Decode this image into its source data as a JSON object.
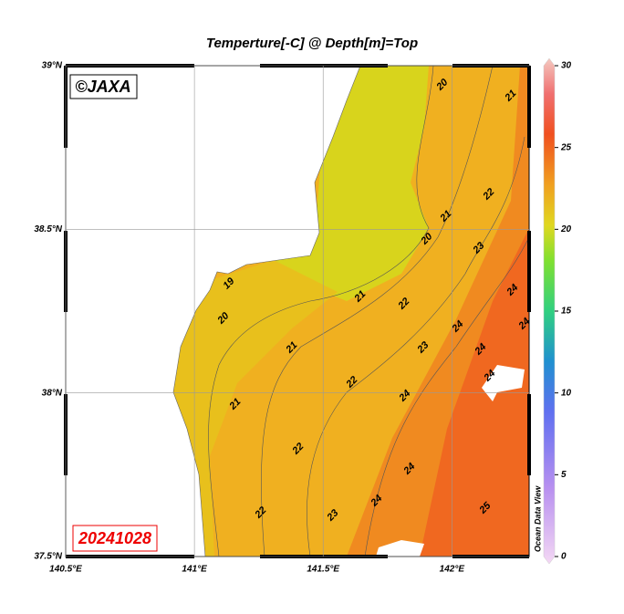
{
  "title": "Temperture[-C] @ Depth[m]=Top",
  "copyright": "©JAXA",
  "date": "20241028",
  "credit": "Ocean Data View",
  "x_axis": {
    "lim": [
      140.5,
      142.3
    ],
    "ticks": [
      {
        "value": 140.5,
        "label": "140.5°E"
      },
      {
        "value": 141,
        "label": "141°E"
      },
      {
        "value": 141.5,
        "label": "141.5°E"
      },
      {
        "value": 142,
        "label": "142°E"
      }
    ]
  },
  "y_axis": {
    "lim": [
      37.5,
      39
    ],
    "ticks": [
      {
        "value": 37.5,
        "label": "37.5°N"
      },
      {
        "value": 38,
        "label": "38°N"
      },
      {
        "value": 38.5,
        "label": "38.5°N"
      },
      {
        "value": 39,
        "label": "39°N"
      }
    ]
  },
  "colorbar": {
    "lim": [
      0,
      30
    ],
    "ticks": [
      0,
      5,
      10,
      15,
      20,
      25,
      30
    ]
  },
  "contour_labels": [
    20,
    21,
    22,
    21,
    20,
    23,
    19,
    21,
    22,
    24,
    20,
    24,
    24,
    21,
    23,
    24,
    22,
    24,
    24,
    21,
    22,
    24,
    24,
    25,
    23,
    22
  ]
}
